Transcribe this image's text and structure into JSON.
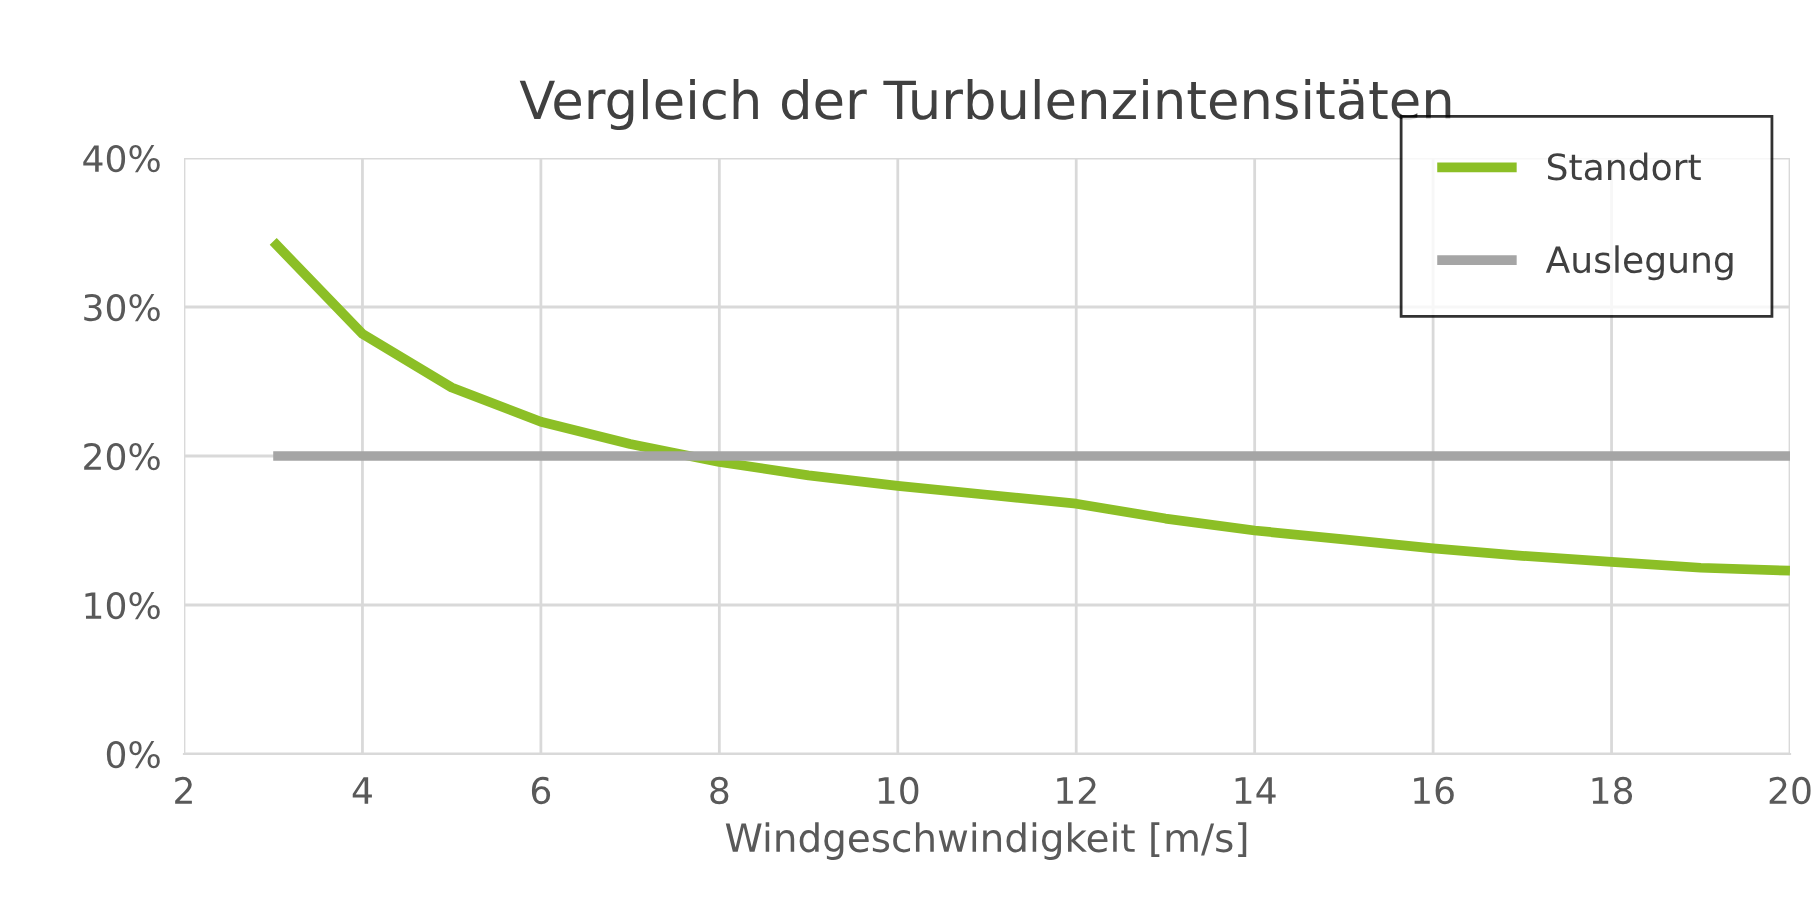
{
  "chart_data": {
    "type": "line",
    "title": "Vergleich der Turbulenzintensitäten",
    "xlabel": "Windgeschwindigkeit [m/s]",
    "x": [
      3,
      4,
      5,
      6,
      7,
      8,
      9,
      10,
      11,
      12,
      13,
      14,
      15,
      16,
      17,
      18,
      19,
      20
    ],
    "series": [
      {
        "name": "Standort",
        "color": "#8cbf26",
        "values": [
          34.4,
          28.2,
          24.6,
          22.3,
          20.8,
          19.6,
          18.7,
          18.0,
          17.4,
          16.8,
          15.8,
          15.0,
          14.4,
          13.8,
          13.3,
          12.9,
          12.5,
          12.3
        ]
      },
      {
        "name": "Auslegung",
        "color": "#a5a5a5",
        "values": [
          20,
          20,
          20,
          20,
          20,
          20,
          20,
          20,
          20,
          20,
          20,
          20,
          20,
          20,
          20,
          20,
          20,
          20
        ]
      }
    ],
    "xlim": [
      2,
      20
    ],
    "xticks": [
      2,
      4,
      6,
      8,
      10,
      12,
      14,
      16,
      18,
      20
    ],
    "ylim": [
      0,
      40
    ],
    "yticks": [
      {
        "value": 0,
        "label": "0%"
      },
      {
        "value": 10,
        "label": "10%"
      },
      {
        "value": 20,
        "label": "20%"
      },
      {
        "value": 30,
        "label": "30%"
      },
      {
        "value": 40,
        "label": "40%"
      }
    ],
    "grid": true,
    "legend": "top right",
    "marker": "none",
    "line_style": "solid"
  }
}
